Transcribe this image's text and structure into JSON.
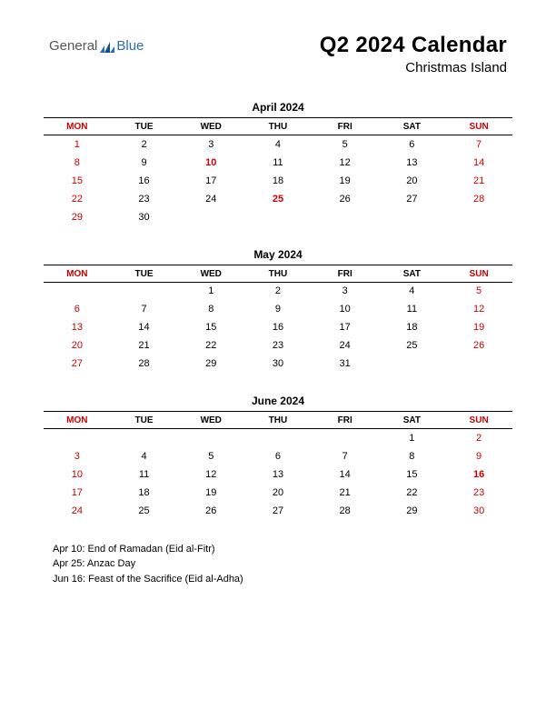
{
  "logo": {
    "general": "General",
    "blue": "Blue",
    "icon_color1": "#2a6db8",
    "icon_color2": "#1a4e8a"
  },
  "title": "Q2 2024 Calendar",
  "subtitle": "Christmas Island",
  "day_headers": [
    "MON",
    "TUE",
    "WED",
    "THU",
    "FRI",
    "SAT",
    "SUN"
  ],
  "header_red_cols": [
    0,
    6
  ],
  "months": [
    {
      "title": "April 2024",
      "weeks": [
        [
          {
            "n": 1,
            "c": "red"
          },
          {
            "n": 2
          },
          {
            "n": 3
          },
          {
            "n": 4
          },
          {
            "n": 5
          },
          {
            "n": 6
          },
          {
            "n": 7,
            "c": "red"
          }
        ],
        [
          {
            "n": 8,
            "c": "red"
          },
          {
            "n": 9
          },
          {
            "n": 10,
            "c": "hol"
          },
          {
            "n": 11
          },
          {
            "n": 12
          },
          {
            "n": 13
          },
          {
            "n": 14,
            "c": "red"
          }
        ],
        [
          {
            "n": 15,
            "c": "red"
          },
          {
            "n": 16
          },
          {
            "n": 17
          },
          {
            "n": 18
          },
          {
            "n": 19
          },
          {
            "n": 20
          },
          {
            "n": 21,
            "c": "red"
          }
        ],
        [
          {
            "n": 22,
            "c": "red"
          },
          {
            "n": 23
          },
          {
            "n": 24
          },
          {
            "n": 25,
            "c": "hol"
          },
          {
            "n": 26
          },
          {
            "n": 27
          },
          {
            "n": 28,
            "c": "red"
          }
        ],
        [
          {
            "n": 29,
            "c": "red"
          },
          {
            "n": 30
          },
          {
            "n": ""
          },
          {
            "n": ""
          },
          {
            "n": ""
          },
          {
            "n": ""
          },
          {
            "n": ""
          }
        ]
      ]
    },
    {
      "title": "May 2024",
      "weeks": [
        [
          {
            "n": ""
          },
          {
            "n": ""
          },
          {
            "n": 1
          },
          {
            "n": 2
          },
          {
            "n": 3
          },
          {
            "n": 4
          },
          {
            "n": 5,
            "c": "red"
          }
        ],
        [
          {
            "n": 6,
            "c": "red"
          },
          {
            "n": 7
          },
          {
            "n": 8
          },
          {
            "n": 9
          },
          {
            "n": 10
          },
          {
            "n": 11
          },
          {
            "n": 12,
            "c": "red"
          }
        ],
        [
          {
            "n": 13,
            "c": "red"
          },
          {
            "n": 14
          },
          {
            "n": 15
          },
          {
            "n": 16
          },
          {
            "n": 17
          },
          {
            "n": 18
          },
          {
            "n": 19,
            "c": "red"
          }
        ],
        [
          {
            "n": 20,
            "c": "red"
          },
          {
            "n": 21
          },
          {
            "n": 22
          },
          {
            "n": 23
          },
          {
            "n": 24
          },
          {
            "n": 25
          },
          {
            "n": 26,
            "c": "red"
          }
        ],
        [
          {
            "n": 27,
            "c": "red"
          },
          {
            "n": 28
          },
          {
            "n": 29
          },
          {
            "n": 30
          },
          {
            "n": 31
          },
          {
            "n": ""
          },
          {
            "n": ""
          }
        ]
      ]
    },
    {
      "title": "June 2024",
      "weeks": [
        [
          {
            "n": ""
          },
          {
            "n": ""
          },
          {
            "n": ""
          },
          {
            "n": ""
          },
          {
            "n": ""
          },
          {
            "n": 1
          },
          {
            "n": 2,
            "c": "red"
          }
        ],
        [
          {
            "n": 3,
            "c": "red"
          },
          {
            "n": 4
          },
          {
            "n": 5
          },
          {
            "n": 6
          },
          {
            "n": 7
          },
          {
            "n": 8
          },
          {
            "n": 9,
            "c": "red"
          }
        ],
        [
          {
            "n": 10,
            "c": "red"
          },
          {
            "n": 11
          },
          {
            "n": 12
          },
          {
            "n": 13
          },
          {
            "n": 14
          },
          {
            "n": 15
          },
          {
            "n": 16,
            "c": "hol"
          }
        ],
        [
          {
            "n": 17,
            "c": "red"
          },
          {
            "n": 18
          },
          {
            "n": 19
          },
          {
            "n": 20
          },
          {
            "n": 21
          },
          {
            "n": 22
          },
          {
            "n": 23,
            "c": "red"
          }
        ],
        [
          {
            "n": 24,
            "c": "red"
          },
          {
            "n": 25
          },
          {
            "n": 26
          },
          {
            "n": 27
          },
          {
            "n": 28
          },
          {
            "n": 29
          },
          {
            "n": 30,
            "c": "red"
          }
        ]
      ]
    }
  ],
  "holidays": [
    "Apr 10: End of Ramadan (Eid al-Fitr)",
    "Apr 25: Anzac Day",
    "Jun 16: Feast of the Sacrifice (Eid al-Adha)"
  ]
}
